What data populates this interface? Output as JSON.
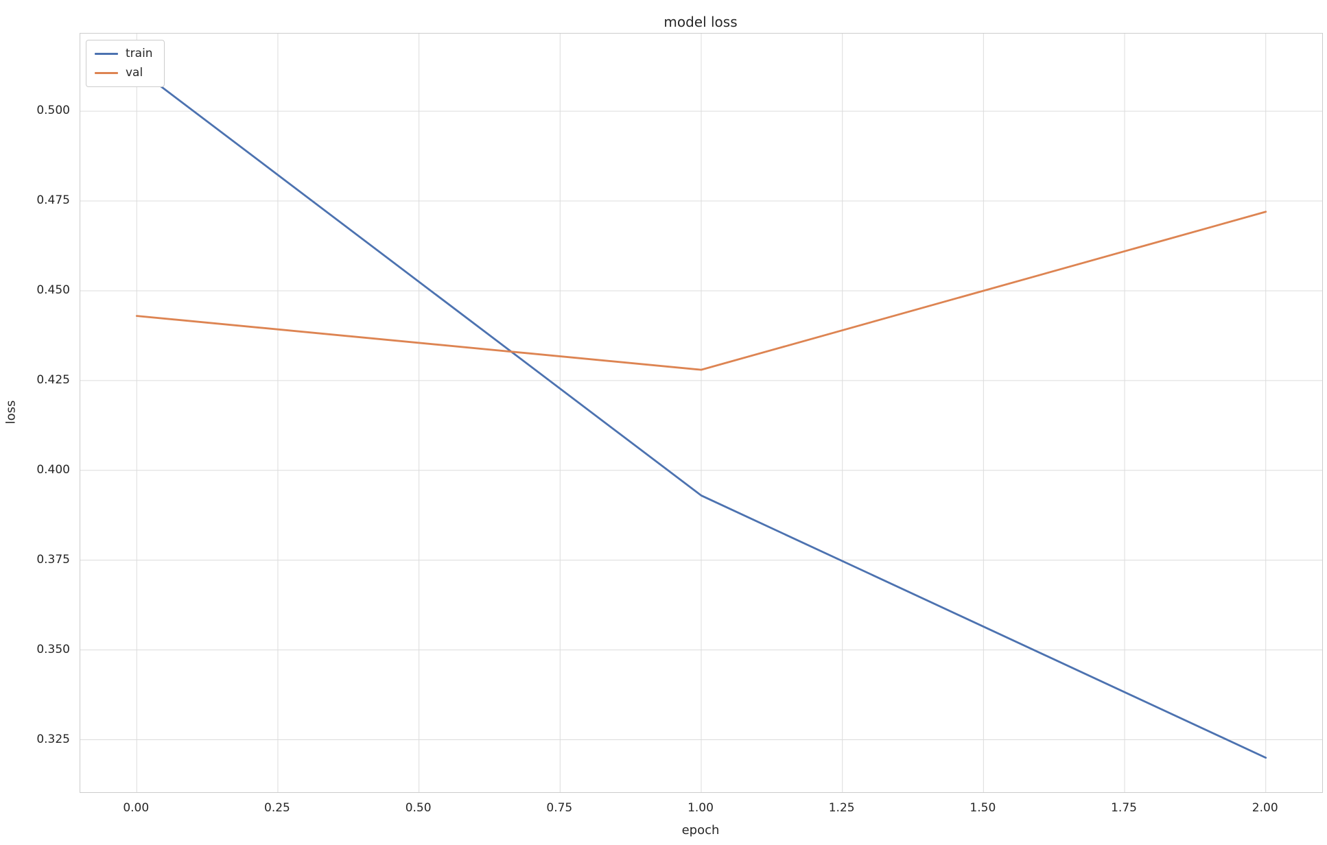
{
  "chart_data": {
    "type": "line",
    "title": "model loss",
    "xlabel": "epoch",
    "ylabel": "loss",
    "x": [
      0,
      1,
      2
    ],
    "series": [
      {
        "name": "train",
        "color": "#4c72b0",
        "values": [
          0.512,
          0.393,
          0.32
        ]
      },
      {
        "name": "val",
        "color": "#dd8452",
        "values": [
          0.443,
          0.428,
          0.472
        ]
      }
    ],
    "xlim": [
      -0.1,
      2.1
    ],
    "ylim": [
      0.3104,
      0.5216
    ],
    "xtick_labels": [
      "0.00",
      "0.25",
      "0.50",
      "0.75",
      "1.00",
      "1.25",
      "1.50",
      "1.75",
      "2.00"
    ],
    "ytick_labels": [
      "0.325",
      "0.350",
      "0.375",
      "0.400",
      "0.425",
      "0.450",
      "0.475",
      "0.500"
    ],
    "grid": true,
    "legend": {
      "position": "upper left",
      "entries": [
        "train",
        "val"
      ]
    },
    "colors": {
      "grid": "#dcdcdc",
      "spine": "#cccccc",
      "text": "#262626",
      "background": "#ffffff"
    }
  }
}
